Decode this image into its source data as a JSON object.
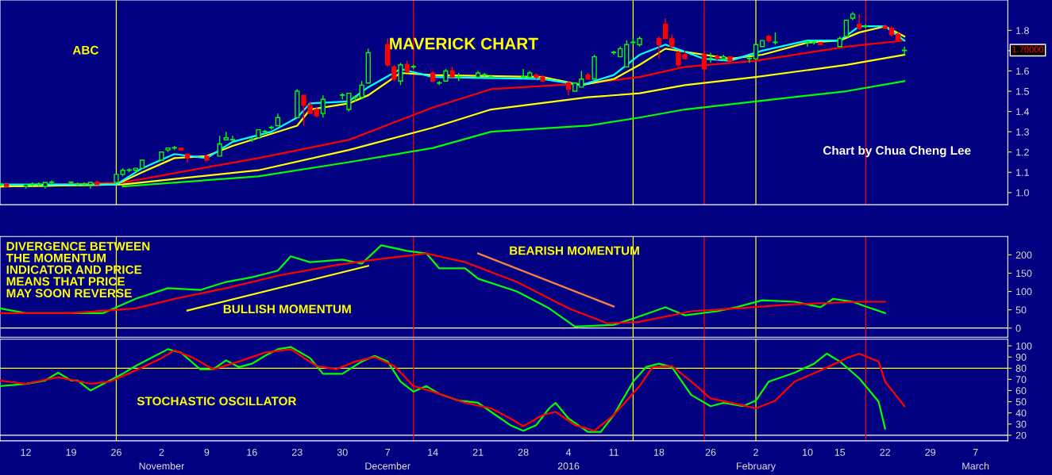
{
  "chart_data": [
    {
      "type": "candlestick",
      "title": "MAVERICK CHART",
      "x": [
        "2015-10-08",
        "2015-10-09",
        "2015-10-12",
        "2015-10-13",
        "2015-10-14",
        "2015-10-15",
        "2015-10-16",
        "2015-10-19",
        "2015-10-20",
        "2015-10-21",
        "2015-10-22",
        "2015-10-23",
        "2015-10-26",
        "2015-10-27",
        "2015-10-28",
        "2015-10-29",
        "2015-10-30",
        "2015-11-02",
        "2015-11-03",
        "2015-11-04",
        "2015-11-05",
        "2015-11-06",
        "2015-11-09",
        "2015-11-11",
        "2015-11-12",
        "2015-11-13",
        "2015-11-16",
        "2015-11-17",
        "2015-11-18",
        "2015-11-19",
        "2015-11-20",
        "2015-11-23",
        "2015-11-24",
        "2015-11-25",
        "2015-11-26",
        "2015-11-27",
        "2015-11-30",
        "2015-12-01",
        "2015-12-02",
        "2015-12-03",
        "2015-12-04",
        "2015-12-07",
        "2015-12-08",
        "2015-12-09",
        "2015-12-10",
        "2015-12-11",
        "2015-12-14",
        "2015-12-15",
        "2015-12-16",
        "2015-12-17",
        "2015-12-18",
        "2015-12-21",
        "2015-12-22",
        "2015-12-23",
        "2015-12-28",
        "2015-12-29",
        "2015-12-30",
        "2015-12-31",
        "2016-01-04",
        "2016-01-05",
        "2016-01-06",
        "2016-01-07",
        "2016-01-08",
        "2016-01-11",
        "2016-01-12",
        "2016-01-13",
        "2016-01-14",
        "2016-01-15",
        "2016-01-18",
        "2016-01-19",
        "2016-01-20",
        "2016-01-21",
        "2016-01-22",
        "2016-01-25",
        "2016-01-26",
        "2016-01-27",
        "2016-01-28",
        "2016-01-29",
        "2016-02-01",
        "2016-02-02",
        "2016-02-03",
        "2016-02-04",
        "2016-02-05",
        "2016-02-10",
        "2016-02-11",
        "2016-02-12",
        "2016-02-15",
        "2016-02-16",
        "2016-02-17",
        "2016-02-18",
        "2016-02-19",
        "2016-02-22",
        "2016-02-23",
        "2016-02-24",
        "2016-02-25"
      ],
      "ohlc": [
        [
          1.04,
          1.05,
          1.03,
          1.04
        ],
        [
          1.04,
          1.05,
          1.03,
          1.03
        ],
        [
          1.03,
          1.04,
          1.02,
          1.04
        ],
        [
          1.04,
          1.05,
          1.03,
          1.04
        ],
        [
          1.04,
          1.05,
          1.03,
          1.04
        ],
        [
          1.03,
          1.05,
          1.02,
          1.05
        ],
        [
          1.05,
          1.06,
          1.04,
          1.05
        ],
        [
          1.05,
          1.05,
          1.04,
          1.05
        ],
        [
          1.04,
          1.05,
          1.03,
          1.04
        ],
        [
          1.04,
          1.05,
          1.03,
          1.04
        ],
        [
          1.04,
          1.05,
          1.02,
          1.05
        ],
        [
          1.05,
          1.06,
          1.04,
          1.04
        ],
        [
          1.05,
          1.09,
          1.05,
          1.09
        ],
        [
          1.09,
          1.12,
          1.08,
          1.11
        ],
        [
          1.11,
          1.12,
          1.1,
          1.11
        ],
        [
          1.11,
          1.12,
          1.1,
          1.12
        ],
        [
          1.12,
          1.16,
          1.12,
          1.16
        ],
        [
          1.16,
          1.2,
          1.16,
          1.2
        ],
        [
          1.21,
          1.22,
          1.2,
          1.22
        ],
        [
          1.22,
          1.23,
          1.21,
          1.22
        ],
        [
          1.22,
          1.22,
          1.21,
          1.21
        ],
        [
          1.19,
          1.19,
          1.15,
          1.17
        ],
        [
          1.18,
          1.18,
          1.16,
          1.16
        ],
        [
          1.18,
          1.28,
          1.18,
          1.24
        ],
        [
          1.26,
          1.3,
          1.26,
          1.27
        ],
        [
          1.26,
          1.28,
          1.25,
          1.26
        ],
        [
          1.26,
          1.27,
          1.25,
          1.26
        ],
        [
          1.27,
          1.31,
          1.27,
          1.31
        ],
        [
          1.3,
          1.31,
          1.29,
          1.3
        ],
        [
          1.32,
          1.33,
          1.31,
          1.32
        ],
        [
          1.33,
          1.39,
          1.33,
          1.37
        ],
        [
          1.37,
          1.51,
          1.37,
          1.5
        ],
        [
          1.48,
          1.48,
          1.33,
          1.43
        ],
        [
          1.43,
          1.45,
          1.39,
          1.39
        ],
        [
          1.41,
          1.42,
          1.37,
          1.38
        ],
        [
          1.39,
          1.48,
          1.37,
          1.46
        ],
        [
          1.48,
          1.49,
          1.46,
          1.48
        ],
        [
          1.41,
          1.49,
          1.4,
          1.49
        ],
        [
          1.47,
          1.48,
          1.45,
          1.47
        ],
        [
          1.47,
          1.55,
          1.46,
          1.53
        ],
        [
          1.54,
          1.71,
          1.54,
          1.69
        ],
        [
          1.73,
          1.76,
          1.62,
          1.63
        ],
        [
          1.62,
          1.63,
          1.55,
          1.56
        ],
        [
          1.55,
          1.64,
          1.53,
          1.63
        ],
        [
          1.63,
          1.65,
          1.59,
          1.6
        ],
        [
          1.62,
          1.63,
          1.61,
          1.62
        ],
        [
          1.59,
          1.6,
          1.55,
          1.55
        ],
        [
          1.54,
          1.55,
          1.53,
          1.54
        ],
        [
          1.55,
          1.61,
          1.55,
          1.6
        ],
        [
          1.6,
          1.62,
          1.57,
          1.57
        ],
        [
          1.57,
          1.59,
          1.55,
          1.57
        ],
        [
          1.57,
          1.6,
          1.56,
          1.59
        ],
        [
          1.58,
          1.59,
          1.57,
          1.58
        ],
        [
          1.57,
          1.58,
          1.56,
          1.57
        ],
        [
          1.57,
          1.61,
          1.56,
          1.57
        ],
        [
          1.57,
          1.6,
          1.56,
          1.59
        ],
        [
          1.58,
          1.59,
          1.56,
          1.57
        ],
        [
          1.57,
          1.58,
          1.55,
          1.55
        ],
        [
          1.54,
          1.55,
          1.48,
          1.51
        ],
        [
          1.5,
          1.54,
          1.5,
          1.54
        ],
        [
          1.52,
          1.6,
          1.52,
          1.56
        ],
        [
          1.58,
          1.59,
          1.56,
          1.56
        ],
        [
          1.56,
          1.68,
          1.56,
          1.67
        ],
        [
          1.69,
          1.7,
          1.68,
          1.69
        ],
        [
          1.67,
          1.72,
          1.67,
          1.71
        ],
        [
          1.62,
          1.75,
          1.62,
          1.73
        ],
        [
          1.74,
          1.76,
          1.73,
          1.74
        ],
        [
          1.73,
          1.77,
          1.72,
          1.76
        ],
        [
          1.76,
          1.77,
          1.66,
          1.73
        ],
        [
          1.83,
          1.86,
          1.76,
          1.76
        ],
        [
          1.76,
          1.78,
          1.72,
          1.72
        ],
        [
          1.69,
          1.7,
          1.62,
          1.63
        ],
        [
          1.68,
          1.7,
          1.66,
          1.66
        ],
        [
          1.68,
          1.7,
          1.6,
          1.61
        ],
        [
          1.66,
          1.69,
          1.64,
          1.66
        ],
        [
          1.67,
          1.68,
          1.65,
          1.66
        ],
        [
          1.66,
          1.68,
          1.65,
          1.67
        ],
        [
          1.67,
          1.67,
          1.65,
          1.65
        ],
        [
          1.66,
          1.67,
          1.64,
          1.66
        ],
        [
          1.66,
          1.73,
          1.66,
          1.73
        ],
        [
          1.72,
          1.75,
          1.72,
          1.75
        ],
        [
          1.77,
          1.78,
          1.74,
          1.75
        ],
        [
          1.74,
          1.79,
          1.73,
          1.74
        ],
        [
          1.74,
          1.75,
          1.72,
          1.74
        ],
        [
          1.74,
          1.75,
          1.73,
          1.74
        ],
        [
          1.74,
          1.74,
          1.73,
          1.73
        ],
        [
          1.72,
          1.77,
          1.72,
          1.76
        ],
        [
          1.77,
          1.85,
          1.77,
          1.85
        ],
        [
          1.86,
          1.89,
          1.85,
          1.88
        ],
        [
          1.83,
          1.88,
          1.8,
          1.81
        ],
        [
          1.82,
          1.83,
          1.81,
          1.82
        ],
        [
          1.82,
          1.83,
          1.81,
          1.81
        ],
        [
          1.81,
          1.82,
          1.77,
          1.78
        ],
        [
          1.78,
          1.79,
          1.75,
          1.75
        ],
        [
          1.7,
          1.72,
          1.68,
          1.7
        ]
      ],
      "series": [
        {
          "type": "line",
          "color": "#ff0000",
          "x": [
            "2015-10-08",
            "2015-10-27",
            "2015-11-17",
            "2015-12-01",
            "2015-12-14",
            "2015-12-23",
            "2016-01-07",
            "2016-01-15",
            "2016-01-22",
            "2016-02-02",
            "2016-02-16",
            "2016-02-25"
          ],
          "values": [
            1.03,
            1.05,
            1.17,
            1.26,
            1.42,
            1.51,
            1.54,
            1.57,
            1.62,
            1.65,
            1.72,
            1.75
          ]
        },
        {
          "type": "line",
          "color": "#ffff00",
          "x": [
            "2015-10-08",
            "2015-10-27",
            "2015-11-17",
            "2015-12-01",
            "2015-12-14",
            "2015-12-23",
            "2016-01-07",
            "2016-01-15",
            "2016-01-22",
            "2016-02-02",
            "2016-02-16",
            "2016-02-25"
          ],
          "values": [
            1.03,
            1.04,
            1.11,
            1.21,
            1.32,
            1.41,
            1.47,
            1.49,
            1.53,
            1.57,
            1.63,
            1.68
          ]
        },
        {
          "type": "line",
          "color": "#00ff00",
          "x": [
            "2015-10-27",
            "2015-11-17",
            "2015-12-01",
            "2015-12-14",
            "2015-12-23",
            "2016-01-07",
            "2016-01-15",
            "2016-01-22",
            "2016-02-02",
            "2016-02-16",
            "2016-02-25"
          ],
          "values": [
            1.03,
            1.08,
            1.15,
            1.22,
            1.3,
            1.33,
            1.37,
            1.41,
            1.45,
            1.5,
            1.55
          ]
        },
        {
          "type": "line",
          "color": "#ffff00",
          "x": [
            "2015-10-08",
            "2015-10-26",
            "2015-10-30",
            "2015-11-04",
            "2015-11-09",
            "2015-11-13",
            "2015-11-19",
            "2015-11-23",
            "2015-11-25",
            "2015-12-01",
            "2015-12-04",
            "2015-12-09",
            "2015-12-14",
            "2015-12-31",
            "2016-01-06",
            "2016-01-11",
            "2016-01-15",
            "2016-01-19",
            "2016-01-25",
            "2016-01-29",
            "2016-02-03",
            "2016-02-10",
            "2016-02-15",
            "2016-02-18",
            "2016-02-22",
            "2016-02-25"
          ],
          "values": [
            1.03,
            1.04,
            1.1,
            1.17,
            1.18,
            1.23,
            1.29,
            1.33,
            1.41,
            1.44,
            1.48,
            1.59,
            1.58,
            1.57,
            1.53,
            1.56,
            1.63,
            1.71,
            1.68,
            1.66,
            1.68,
            1.74,
            1.75,
            1.79,
            1.82,
            1.77
          ]
        },
        {
          "type": "line",
          "color": "#00ffff",
          "x": [
            "2015-10-08",
            "2015-10-26",
            "2015-10-30",
            "2015-11-04",
            "2015-11-09",
            "2015-11-13",
            "2015-11-19",
            "2015-11-23",
            "2015-11-25",
            "2015-12-01",
            "2015-12-04",
            "2015-12-09",
            "2015-12-14",
            "2015-12-31",
            "2016-01-06",
            "2016-01-11",
            "2016-01-15",
            "2016-01-19",
            "2016-01-25",
            "2016-01-29",
            "2016-02-03",
            "2016-02-10",
            "2016-02-15",
            "2016-02-18",
            "2016-02-22",
            "2016-02-25"
          ],
          "values": [
            1.04,
            1.04,
            1.12,
            1.19,
            1.17,
            1.25,
            1.3,
            1.37,
            1.44,
            1.45,
            1.52,
            1.61,
            1.57,
            1.56,
            1.53,
            1.58,
            1.68,
            1.73,
            1.66,
            1.65,
            1.7,
            1.75,
            1.75,
            1.82,
            1.82,
            1.75
          ]
        }
      ],
      "annotations": [
        "ABC",
        "Chart by Chua Cheng Lee",
        "1.70000"
      ],
      "ref_lines": [
        {
          "axis": "x",
          "value": "2015-10-26",
          "color": "#ffff00"
        },
        {
          "axis": "x",
          "value": "2015-12-11",
          "color": "#ff0000"
        },
        {
          "axis": "x",
          "value": "2016-01-14",
          "color": "#ffff00"
        },
        {
          "axis": "x",
          "value": "2016-01-25",
          "color": "#ff0000"
        },
        {
          "axis": "x",
          "value": "2016-02-02",
          "color": "#ffff00"
        },
        {
          "axis": "x",
          "value": "2016-02-19",
          "color": "#ff0000"
        }
      ],
      "xlim": [
        "2015-10-08",
        "2016-03-12"
      ],
      "ylim": [
        0.94,
        1.95
      ],
      "yticks": [
        {
          "value": 1.0,
          "label": "1.0"
        },
        1.1,
        1.2,
        1.3,
        1.4,
        1.5,
        1.6,
        {
          "value": 1.7,
          "label": null
        },
        1.8
      ],
      "tick_labels": "y"
    },
    {
      "type": "line",
      "series": [
        {
          "color": "#00ff00",
          "x": [
            "2015-10-08",
            "2015-10-12",
            "2015-10-24",
            "2015-10-29",
            "2015-11-03",
            "2015-11-08",
            "2015-11-12",
            "2015-11-16",
            "2015-11-20",
            "2015-11-22",
            "2015-11-25",
            "2015-11-30",
            "2015-12-03",
            "2015-12-06",
            "2015-12-10",
            "2015-12-13",
            "2015-12-15",
            "2015-12-19",
            "2015-12-21",
            "2015-12-27",
            "2016-01-01",
            "2016-01-05",
            "2016-01-11",
            "2016-01-14",
            "2016-01-19",
            "2016-01-22",
            "2016-01-27",
            "2016-01-30",
            "2016-02-03",
            "2016-02-08",
            "2016-02-12",
            "2016-02-14",
            "2016-02-17",
            "2016-02-19",
            "2016-02-22"
          ],
          "values": [
            54,
            41,
            41,
            80,
            109,
            104,
            126,
            139,
            157,
            196,
            180,
            187,
            176,
            226,
            211,
            204,
            163,
            163,
            135,
            100,
            54,
            4,
            9,
            26,
            57,
            35,
            46,
            57,
            76,
            72,
            57,
            80,
            72,
            59,
            41
          ]
        },
        {
          "color": "#ff0000",
          "x": [
            "2015-10-08",
            "2015-10-19",
            "2015-10-29",
            "2015-11-04",
            "2015-11-12",
            "2015-11-20",
            "2015-11-29",
            "2015-12-05",
            "2015-12-13",
            "2015-12-19",
            "2015-12-27",
            "2016-01-04",
            "2016-01-10",
            "2016-01-15",
            "2016-01-23",
            "2016-01-30",
            "2016-02-08",
            "2016-02-18",
            "2016-02-22"
          ],
          "values": [
            41,
            41,
            54,
            80,
            109,
            143,
            172,
            187,
            204,
            180,
            126,
            54,
            13,
            17,
            46,
            54,
            65,
            72,
            72
          ]
        },
        {
          "color": "#ffff00",
          "x": [
            "2015-11-06",
            "2015-12-04"
          ],
          "values": [
            48,
            170
          ]
        },
        {
          "color": "#ff8040",
          "x": [
            "2015-12-21",
            "2016-01-11"
          ],
          "values": [
            204,
            59
          ]
        }
      ],
      "annotations": [
        "DIVERGENCE BETWEEN\nTHE MOMENTUM\nINDICATOR AND PRICE\nMEANS THAT PRICE\nMAY SOON REVERSE",
        "BULLISH MOMENTUM",
        "BEARISH MOMENTUM"
      ],
      "ref_lines": [
        {
          "axis": "y",
          "value": 0,
          "color": "#ffffff"
        },
        {
          "axis": "x",
          "value": "2015-10-26",
          "color": "#ffff00"
        },
        {
          "axis": "x",
          "value": "2015-12-11",
          "color": "#ff0000"
        },
        {
          "axis": "x",
          "value": "2016-01-14",
          "color": "#ffff00"
        },
        {
          "axis": "x",
          "value": "2016-01-25",
          "color": "#ff0000"
        },
        {
          "axis": "x",
          "value": "2016-02-02",
          "color": "#ffff00"
        },
        {
          "axis": "x",
          "value": "2016-02-19",
          "color": "#ff0000"
        }
      ],
      "xlim": [
        "2015-10-08",
        "2016-03-12"
      ],
      "ylim": [
        -25,
        250
      ],
      "yticks": [
        0,
        50,
        100,
        150,
        200
      ],
      "tick_labels": "y"
    },
    {
      "type": "line",
      "series": [
        {
          "color": "#00ff00",
          "x": [
            "2015-10-08",
            "2015-10-12",
            "2015-10-15",
            "2015-10-17",
            "2015-10-19",
            "2015-10-20",
            "2015-10-22",
            "2015-10-24",
            "2015-10-27",
            "2015-10-29",
            "2015-11-01",
            "2015-11-03",
            "2015-11-05",
            "2015-11-08",
            "2015-11-10",
            "2015-11-12",
            "2015-11-14",
            "2015-11-16",
            "2015-11-18",
            "2015-11-20",
            "2015-11-22",
            "2015-11-25",
            "2015-11-27",
            "2015-11-30",
            "2015-12-03",
            "2015-12-05",
            "2015-12-07",
            "2015-12-09",
            "2015-12-11",
            "2015-12-13",
            "2015-12-15",
            "2015-12-18",
            "2015-12-21",
            "2015-12-23",
            "2015-12-26",
            "2015-12-28",
            "2015-12-30",
            "2016-01-01",
            "2016-01-02",
            "2016-01-04",
            "2016-01-07",
            "2016-01-09",
            "2016-01-11",
            "2016-01-14",
            "2016-01-16",
            "2016-01-18",
            "2016-01-20",
            "2016-01-23",
            "2016-01-26",
            "2016-01-28",
            "2016-01-31",
            "2016-02-02",
            "2016-02-04",
            "2016-02-08",
            "2016-02-11",
            "2016-02-13",
            "2016-02-15",
            "2016-02-18",
            "2016-02-21",
            "2016-02-22"
          ],
          "values": [
            64,
            66,
            69,
            76,
            69,
            69,
            60,
            66,
            75,
            82,
            91,
            97,
            94,
            79,
            79,
            87,
            81,
            84,
            91,
            97,
            99,
            89,
            75,
            75,
            86,
            91,
            86,
            68,
            59,
            64,
            57,
            51,
            49,
            41,
            29,
            24,
            29,
            44,
            49,
            35,
            23,
            23,
            38,
            68,
            81,
            84,
            81,
            56,
            46,
            49,
            46,
            51,
            68,
            76,
            84,
            93,
            86,
            71,
            50,
            26
          ]
        },
        {
          "color": "#ff0000",
          "x": [
            "2015-10-08",
            "2015-10-12",
            "2015-10-17",
            "2015-10-22",
            "2015-10-25",
            "2015-10-29",
            "2015-11-02",
            "2015-11-04",
            "2015-11-07",
            "2015-11-10",
            "2015-11-14",
            "2015-11-18",
            "2015-11-22",
            "2015-11-26",
            "2015-11-29",
            "2015-12-02",
            "2015-12-05",
            "2015-12-08",
            "2015-12-11",
            "2015-12-14",
            "2015-12-19",
            "2015-12-23",
            "2015-12-26",
            "2015-12-28",
            "2015-12-31",
            "2016-01-02",
            "2016-01-05",
            "2016-01-08",
            "2016-01-11",
            "2016-01-15",
            "2016-01-17",
            "2016-01-20",
            "2016-01-23",
            "2016-01-26",
            "2016-01-30",
            "2016-02-02",
            "2016-02-05",
            "2016-02-08",
            "2016-02-12",
            "2016-02-16",
            "2016-02-18",
            "2016-02-21",
            "2016-02-22",
            "2016-02-25"
          ],
          "values": [
            69,
            66,
            72,
            66,
            68,
            78,
            89,
            96,
            89,
            79,
            86,
            94,
            97,
            82,
            79,
            86,
            90,
            82,
            64,
            59,
            49,
            44,
            35,
            28,
            38,
            41,
            29,
            24,
            38,
            64,
            81,
            82,
            68,
            53,
            48,
            44,
            51,
            68,
            78,
            89,
            93,
            86,
            68,
            46
          ]
        }
      ],
      "annotations": [
        "STOCHASTIC OSCILLATOR"
      ],
      "ref_lines": [
        {
          "axis": "y",
          "value": 80,
          "color": "#ffff00"
        },
        {
          "axis": "y",
          "value": 20,
          "color": "#ffffff"
        },
        {
          "axis": "x",
          "value": "2015-10-26",
          "color": "#ffff00"
        },
        {
          "axis": "x",
          "value": "2015-12-11",
          "color": "#ff0000"
        },
        {
          "axis": "x",
          "value": "2016-01-14",
          "color": "#ffff00"
        },
        {
          "axis": "x",
          "value": "2016-01-25",
          "color": "#ff0000"
        },
        {
          "axis": "x",
          "value": "2016-02-02",
          "color": "#ffff00"
        },
        {
          "axis": "x",
          "value": "2016-02-19",
          "color": "#ff0000"
        }
      ],
      "xlim": [
        "2015-10-08",
        "2016-03-12"
      ],
      "ylim": [
        15,
        106
      ],
      "yticks": [
        20,
        30,
        40,
        50,
        60,
        70,
        80,
        90,
        100
      ],
      "xticks": [
        {
          "value": "2015-10-12",
          "label": "12"
        },
        {
          "value": "2015-10-19",
          "label": "19"
        },
        {
          "value": "2015-10-26",
          "label": "26"
        },
        {
          "value": "2015-11-02",
          "label": "2"
        },
        {
          "value": "2015-11-09",
          "label": "9"
        },
        {
          "value": "2015-11-16",
          "label": "16"
        },
        {
          "value": "2015-11-23",
          "label": "23"
        },
        {
          "value": "2015-11-30",
          "label": "30"
        },
        {
          "value": "2015-12-07",
          "label": "7"
        },
        {
          "value": "2015-12-14",
          "label": "14"
        },
        {
          "value": "2015-12-21",
          "label": "21"
        },
        {
          "value": "2015-12-28",
          "label": "28"
        },
        {
          "value": "2016-01-04",
          "label": "4"
        },
        {
          "value": "2016-01-11",
          "label": "11"
        },
        {
          "value": "2016-01-18",
          "label": "18"
        },
        {
          "value": "2016-01-26",
          "label": "26"
        },
        {
          "value": "2016-02-02",
          "label": "2"
        },
        {
          "value": "2016-02-10",
          "label": "10"
        },
        {
          "value": "2016-02-15",
          "label": "15"
        },
        {
          "value": "2016-02-22",
          "label": "22"
        },
        {
          "value": "2016-02-29",
          "label": "29"
        },
        {
          "value": "2016-03-07",
          "label": "7"
        }
      ],
      "x2lim": [
        "2015-10-08",
        "2016-03-12"
      ],
      "x2ticks": [
        {
          "value": "2015-11-02",
          "label": "November"
        },
        {
          "value": "2015-12-07",
          "label": "December"
        },
        {
          "value": "2016-01-04",
          "label": "2016"
        },
        {
          "value": "2016-02-02",
          "label": "February"
        },
        {
          "value": "2016-03-07",
          "label": "March"
        }
      ]
    }
  ]
}
